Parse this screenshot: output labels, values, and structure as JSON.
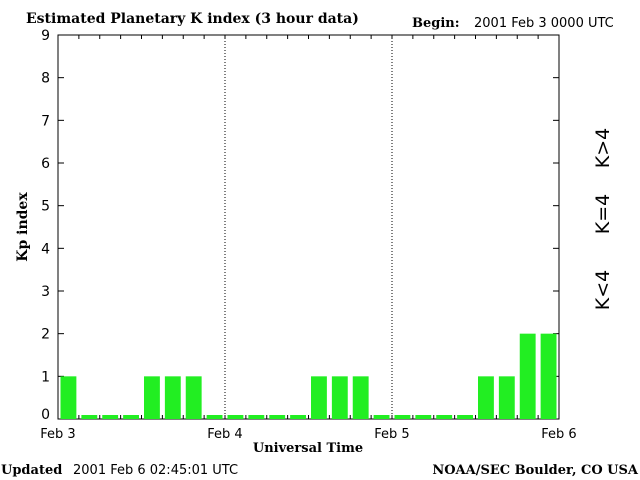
{
  "header": {
    "title": "Estimated Planetary K index (3 hour data)",
    "begin_label": "Begin:",
    "begin_value": "2001 Feb 3 0000 UTC"
  },
  "footer": {
    "updated_label": "Updated",
    "updated_value": "2001 Feb  6 02:45:01 UTC",
    "source": "NOAA/SEC Boulder, CO USA"
  },
  "legend": {
    "low": {
      "label": "K<4",
      "color": "#22ee22"
    },
    "mid": {
      "label": "K=4",
      "color": "#ffcc00"
    },
    "high": {
      "label": "K>4",
      "color": "#ee3322"
    }
  },
  "chart_data": {
    "type": "bar",
    "xlabel": "Universal Time",
    "ylabel": "Kp index",
    "ylim": [
      0,
      9
    ],
    "yticks": [
      0,
      1,
      2,
      3,
      4,
      5,
      6,
      7,
      8,
      9
    ],
    "xticks": [
      "Feb 3",
      "Feb 4",
      "Feb 5",
      "Feb 6"
    ],
    "bins_per_day": 8,
    "days": 3,
    "values": [
      1,
      0,
      0,
      0,
      1,
      1,
      1,
      0,
      0,
      0,
      0,
      0,
      1,
      1,
      1,
      0,
      0,
      0,
      0,
      0,
      1,
      1,
      2,
      2
    ],
    "bar_color": "#22ee22"
  }
}
